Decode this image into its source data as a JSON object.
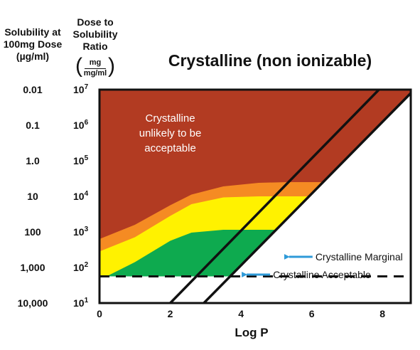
{
  "headers": {
    "solubility": "Solubility at 100mg Dose (µg/ml)",
    "ratio": "Dose to Solubility Ratio",
    "ratio_unit_num": "mg",
    "ratio_unit_den": "mg/ml"
  },
  "chart_data": {
    "type": "area",
    "title": "Crystalline (non ionizable)",
    "xlabel": "Log P",
    "x_ticks": [
      "0",
      "2",
      "4",
      "6",
      "8"
    ],
    "xlim": [
      0,
      8.8
    ],
    "y_scale": "log",
    "ylim_log10": [
      1,
      7
    ],
    "y_ticks_ratio": [
      {
        "base": "10",
        "exp": "7"
      },
      {
        "base": "10",
        "exp": "6"
      },
      {
        "base": "10",
        "exp": "5"
      },
      {
        "base": "10",
        "exp": "4"
      },
      {
        "base": "10",
        "exp": "3"
      },
      {
        "base": "10",
        "exp": "2"
      },
      {
        "base": "10",
        "exp": "1"
      }
    ],
    "y_ticks_solubility": [
      "0.01",
      "0.1",
      "1.0",
      "10",
      "100",
      "1,000",
      "10,000"
    ],
    "colors": {
      "unacceptable": "#b23b22",
      "orange": "#f58b23",
      "marginal": "#fff200",
      "acceptable": "#0eaa4f",
      "boundary": "#111111",
      "arrow": "#2e9ad8"
    },
    "regions": [
      {
        "name": "Crystalline unlikely to be acceptable",
        "color": "unacceptable"
      },
      {
        "name": "Crystalline Marginal",
        "color": "marginal"
      },
      {
        "name": "Crystalline Acceptable",
        "color": "acceptable"
      }
    ],
    "boundaries": {
      "orange_top": [
        [
          0,
          2.8
        ],
        [
          1,
          3.2
        ],
        [
          2,
          3.75
        ],
        [
          2.6,
          4.05
        ],
        [
          3.5,
          4.28
        ],
        [
          4.5,
          4.38
        ],
        [
          5.3,
          4.4
        ],
        [
          6.6,
          4.4
        ]
      ],
      "yellow_top": [
        [
          0,
          2.45
        ],
        [
          1,
          2.85
        ],
        [
          2,
          3.45
        ],
        [
          2.6,
          3.78
        ],
        [
          3.5,
          3.97
        ],
        [
          4.5,
          4.0
        ],
        [
          6.0,
          4.0
        ]
      ],
      "green_top": [
        [
          0,
          1.65
        ],
        [
          1,
          2.15
        ],
        [
          2,
          2.75
        ],
        [
          2.6,
          2.98
        ],
        [
          3.5,
          3.06
        ],
        [
          4.5,
          3.06
        ],
        [
          5.1,
          3.06
        ]
      ],
      "dashed_baseline_log10": 1.75,
      "diagonal_lines": [
        [
          [
            2.0,
            1.0
          ],
          [
            7.9,
            7.0
          ]
        ],
        [
          [
            2.95,
            1.0
          ],
          [
            8.8,
            6.9
          ]
        ]
      ]
    },
    "annotations": [
      {
        "text": "Crystalline Marginal",
        "x": 5.2,
        "y_log10": 2.3
      },
      {
        "text": "Crystalline Acceptable",
        "x": 4.0,
        "y_log10": 1.8
      }
    ],
    "grid": false,
    "legend": "none"
  }
}
